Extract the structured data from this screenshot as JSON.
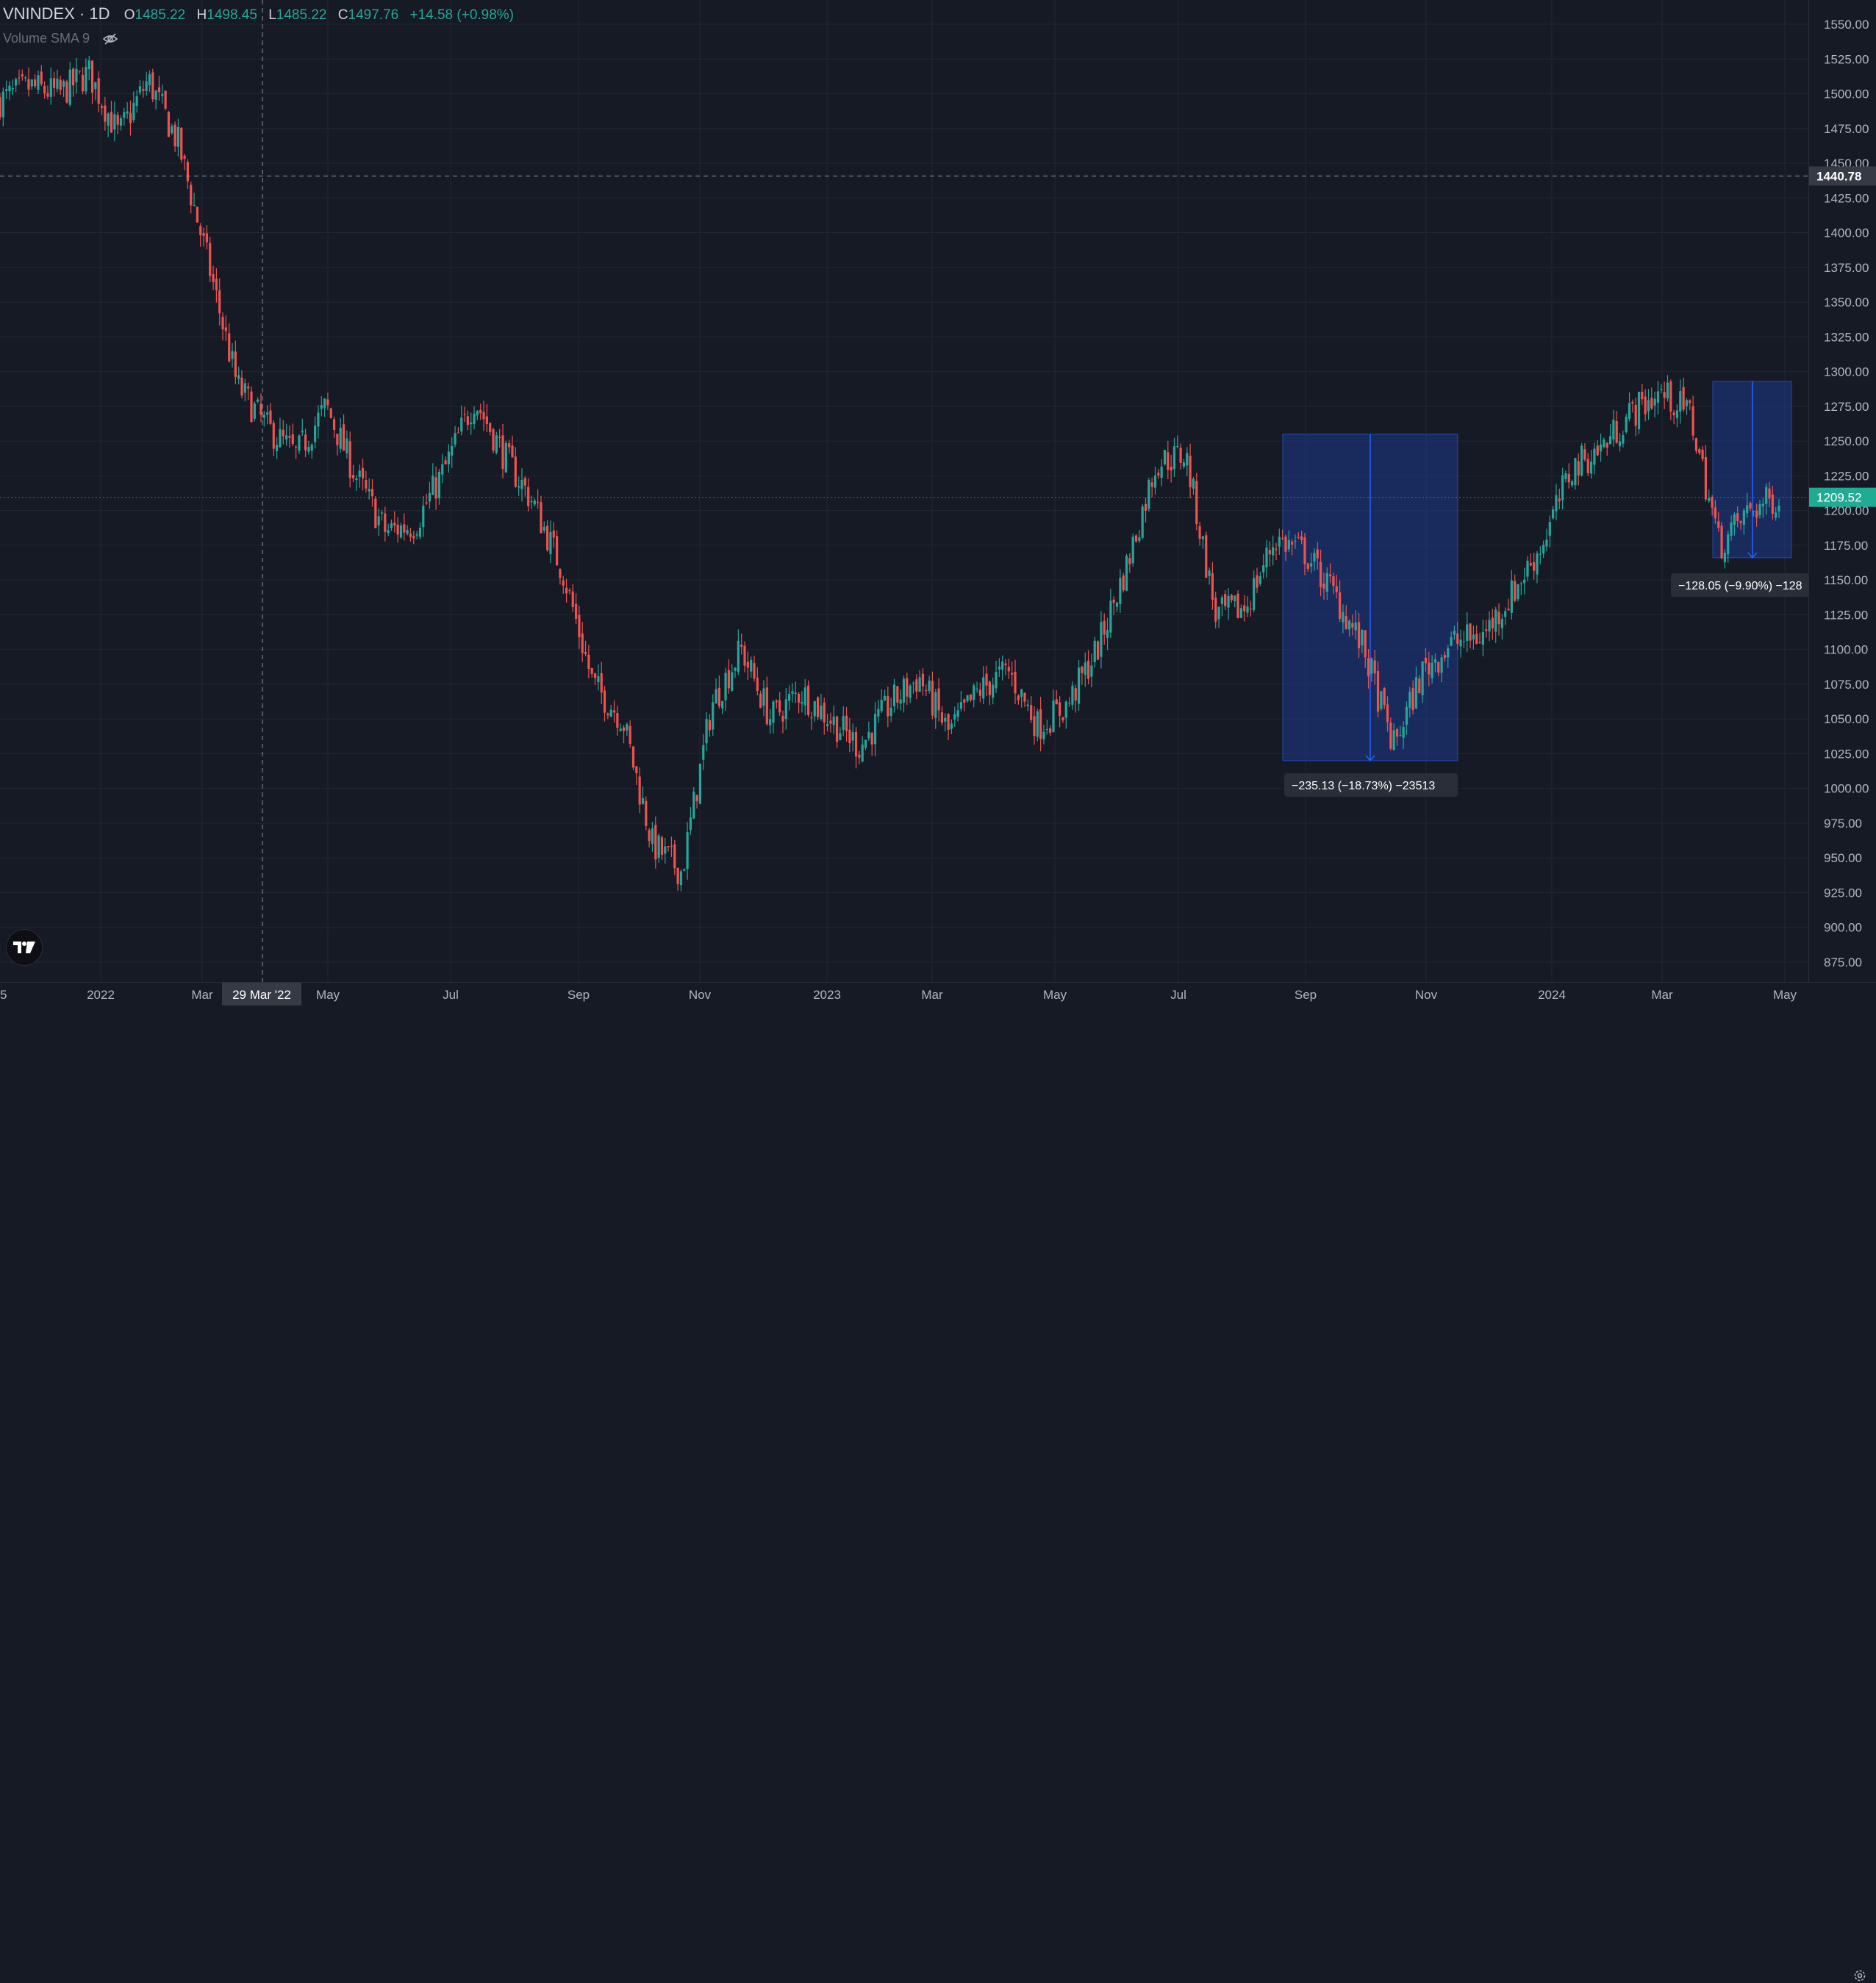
{
  "legend": {
    "symbol": "VNINDEX · 1D",
    "o_label": "O",
    "o_value": "1485.22",
    "h_label": "H",
    "h_value": "1498.45",
    "l_label": "L",
    "l_value": "1485.22",
    "c_label": "C",
    "c_value": "1497.76",
    "change": "+14.58 (+0.98%)"
  },
  "volume_indicator": {
    "label": "Volume SMA 9"
  },
  "price_axis": {
    "ticks": [
      "1550.00",
      "1525.00",
      "1500.00",
      "1475.00",
      "1450.00",
      "1425.00",
      "1400.00",
      "1375.00",
      "1350.00",
      "1325.00",
      "1300.00",
      "1275.00",
      "1250.00",
      "1225.00",
      "1200.00",
      "1175.00",
      "1150.00",
      "1125.00",
      "1100.00",
      "1075.00",
      "1050.00",
      "1025.00",
      "1000.00",
      "975.00",
      "950.00",
      "925.00",
      "900.00",
      "875.00"
    ],
    "crosshair_price": "1440.78",
    "last_price": "1209.52"
  },
  "time_axis": {
    "ticks": [
      "5",
      "2022",
      "Mar",
      "May",
      "Jul",
      "Sep",
      "Nov",
      "2023",
      "Mar",
      "May",
      "Jul",
      "Sep",
      "Nov",
      "2024",
      "Mar",
      "May"
    ],
    "crosshair_date": "29 Mar '22"
  },
  "measurements": [
    {
      "label": "−235.13 (−18.73%) −23513",
      "high": 1255,
      "low": 1020
    },
    {
      "label": "−128.05 (−9.90%) −128",
      "high": 1293,
      "low": 1166
    }
  ],
  "colors": {
    "background": "#161a25",
    "up": "#26a69a",
    "down": "#ef5350",
    "measure_fill": "#1e3a8a",
    "measure_line": "#2962ff",
    "last_price_bg": "#22ab94"
  },
  "chart_data": {
    "type": "candlestick",
    "ylim": [
      865,
      1560
    ],
    "x": [
      "2022-01",
      "2022-02",
      "2022-03",
      "2022-04",
      "2022-05",
      "2022-06",
      "2022-07",
      "2022-08",
      "2022-09",
      "2022-10",
      "2022-11",
      "2022-12",
      "2023-01",
      "2023-02",
      "2023-03",
      "2023-04",
      "2023-05",
      "2023-06",
      "2023-07",
      "2023-08",
      "2023-09",
      "2023-10",
      "2023-11",
      "2023-12",
      "2024-01",
      "2024-02",
      "2024-03",
      "2024-04"
    ],
    "close_path": [
      1495,
      1505,
      1500,
      1515,
      1470,
      1510,
      1465,
      1380,
      1290,
      1260,
      1240,
      1275,
      1225,
      1185,
      1190,
      1230,
      1280,
      1240,
      1205,
      1155,
      1075,
      1050,
      960,
      940,
      1060,
      1100,
      1050,
      1070,
      1050,
      1030,
      1060,
      1080,
      1040,
      1070,
      1085,
      1045,
      1060,
      1100,
      1160,
      1235,
      1240,
      1125,
      1130,
      1180,
      1170,
      1140,
      1100,
      1030,
      1085,
      1105,
      1110,
      1140,
      1175,
      1230,
      1245,
      1270,
      1285,
      1270,
      1175,
      1200,
      1210
    ]
  }
}
